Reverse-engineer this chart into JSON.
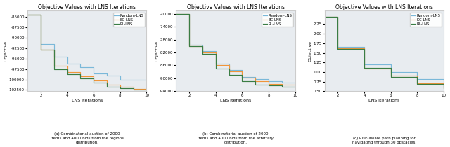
{
  "title": "Objective Values with LNS Iterations",
  "xlabel": "LNS Iterations",
  "ylabel": "Objective",
  "subplot1": {
    "legend": [
      "Random-LNS",
      "BC-LNS",
      "RL-LNS"
    ],
    "colors": [
      "#7ab8d9",
      "#f0953a",
      "#3a7d44"
    ],
    "x": [
      1,
      2,
      3,
      4,
      5,
      6,
      7,
      8,
      9,
      10
    ],
    "random": [
      -84500,
      -91500,
      -94500,
      -96200,
      -97000,
      -98500,
      -99000,
      -100000,
      -100100,
      -100300
    ],
    "bc": [
      -84500,
      -92800,
      -96800,
      -98200,
      -99200,
      -100300,
      -101200,
      -101800,
      -102200,
      -102300
    ],
    "rl": [
      -84500,
      -92800,
      -97500,
      -98700,
      -99700,
      -100700,
      -101700,
      -102100,
      -102400,
      -102500
    ],
    "ylim": [
      -102800,
      -83500
    ],
    "yticks": [
      -85000,
      -87500,
      -90000,
      -92500,
      -95000,
      -97500,
      -100000,
      -102500
    ],
    "xlim": [
      1,
      10
    ],
    "xticks": [
      2,
      4,
      6,
      8,
      10
    ]
  },
  "subplot2": {
    "legend": [
      "Random-LNS",
      "BC-LNS",
      "RL-LNS"
    ],
    "colors": [
      "#7ab8d9",
      "#f0953a",
      "#3a7d44"
    ],
    "x": [
      1,
      2,
      3,
      4,
      5,
      6,
      7,
      8,
      9,
      10
    ],
    "random": [
      -70000,
      -79500,
      -81500,
      -85500,
      -87500,
      -89500,
      -90200,
      -91000,
      -91300,
      -91700
    ],
    "bc": [
      -70000,
      -80000,
      -82000,
      -85800,
      -87800,
      -89800,
      -91000,
      -91800,
      -92100,
      -92300
    ],
    "rl": [
      -70000,
      -80000,
      -82500,
      -87000,
      -89000,
      -91000,
      -92000,
      -92300,
      -92600,
      -93200
    ],
    "ylim": [
      -94000,
      -69000
    ],
    "yticks": [
      -70000,
      -74000,
      -78000,
      -82000,
      -86000,
      -90000,
      -94000
    ],
    "xlim": [
      1,
      10
    ],
    "xticks": [
      2,
      4,
      6,
      8,
      10
    ]
  },
  "subplot3": {
    "legend": [
      "Random-LNS",
      "DC-LNS",
      "RL-LNS"
    ],
    "colors": [
      "#7ab8d9",
      "#f0953a",
      "#3a7d44"
    ],
    "x": [
      1,
      2,
      3,
      4,
      5,
      6,
      7,
      8,
      9,
      10
    ],
    "random": [
      2.45,
      1.65,
      1.65,
      1.2,
      1.2,
      1.0,
      1.0,
      0.82,
      0.82,
      0.62
    ],
    "bc": [
      2.45,
      1.62,
      1.62,
      1.08,
      1.08,
      0.9,
      0.9,
      0.7,
      0.7,
      0.6
    ],
    "rl": [
      2.45,
      1.6,
      1.6,
      1.1,
      1.1,
      0.87,
      0.87,
      0.68,
      0.68,
      0.57
    ],
    "ylim": [
      0.5,
      2.6
    ],
    "yticks": [
      0.5,
      0.75,
      1.0,
      1.25,
      1.5,
      1.75,
      2.0,
      2.25
    ],
    "xlim": [
      1,
      10
    ],
    "xticks": [
      2,
      4,
      6,
      8,
      10
    ]
  },
  "captions": [
    "(a) Combinatorial auction of 2000\nitems and 4000 bids from the regions\ndistribution.",
    "(b) Combinatorial auction of 2000\nitems and 4000 bids from the arbitrary\ndistribution.",
    "(c) Risk-aware path planning for\nnavigating through 30 obstacles."
  ],
  "bg_color": "#e8ecf0",
  "fig_bg": "#ffffff"
}
